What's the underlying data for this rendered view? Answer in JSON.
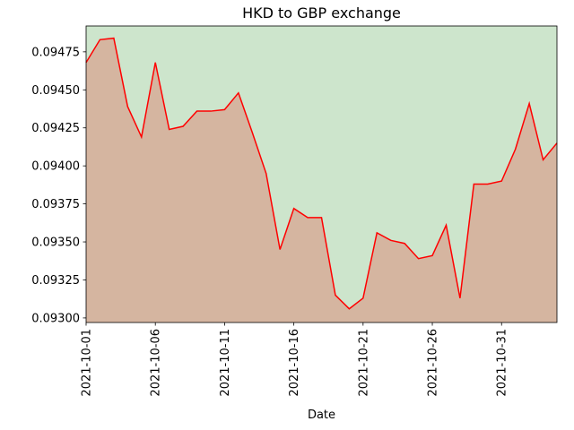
{
  "chart_data": {
    "type": "area",
    "title": "HKD to GBP exchange",
    "xlabel": "Date",
    "ylabel": "",
    "x_start": "2021-10-01",
    "x_end": "2021-11-04",
    "ylim": [
      0.09297,
      0.09492
    ],
    "y_ticks": [
      "0.09300",
      "0.09325",
      "0.09350",
      "0.09375",
      "0.09400",
      "0.09425",
      "0.09450",
      "0.09475"
    ],
    "x_ticks": [
      "2021-10-01",
      "2021-10-06",
      "2021-10-11",
      "2021-10-16",
      "2021-10-21",
      "2021-10-26",
      "2021-10-31"
    ],
    "grid": false,
    "colors": {
      "line": "#ff0000",
      "below_fill": "#d5b5a0",
      "above_fill": "#cde5cc"
    },
    "series": [
      {
        "x": [
          "2021-10-01",
          "2021-10-02",
          "2021-10-03",
          "2021-10-04",
          "2021-10-05",
          "2021-10-06",
          "2021-10-07",
          "2021-10-08",
          "2021-10-09",
          "2021-10-10",
          "2021-10-11",
          "2021-10-12",
          "2021-10-13",
          "2021-10-14",
          "2021-10-15",
          "2021-10-16",
          "2021-10-17",
          "2021-10-18",
          "2021-10-19",
          "2021-10-20",
          "2021-10-21",
          "2021-10-22",
          "2021-10-23",
          "2021-10-24",
          "2021-10-25",
          "2021-10-26",
          "2021-10-27",
          "2021-10-28",
          "2021-10-29",
          "2021-10-30",
          "2021-10-31",
          "2021-11-01",
          "2021-11-02",
          "2021-11-03",
          "2021-11-04"
        ],
        "values": [
          0.09468,
          0.09483,
          0.09484,
          0.09439,
          0.09419,
          0.09468,
          0.09424,
          0.09426,
          0.09436,
          0.09436,
          0.09437,
          0.09448,
          0.09422,
          0.09395,
          0.09345,
          0.09372,
          0.09366,
          0.09366,
          0.09315,
          0.09306,
          0.09313,
          0.09356,
          0.09351,
          0.09349,
          0.09339,
          0.09341,
          0.09361,
          0.09313,
          0.09388,
          0.09388,
          0.0939,
          0.09411,
          0.09441,
          0.09404,
          0.09415
        ]
      }
    ]
  }
}
